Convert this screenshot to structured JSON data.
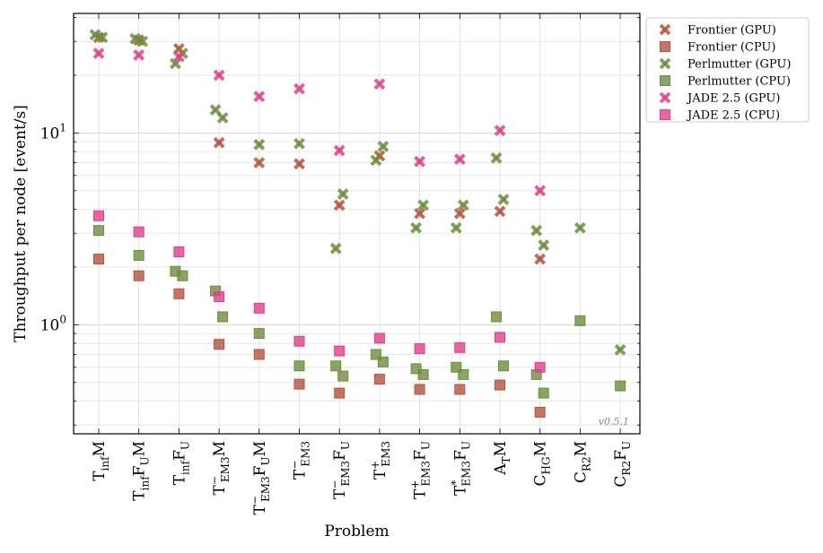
{
  "chart_data": {
    "type": "scatter",
    "xlabel": "Problem",
    "ylabel": "Throughput per node [event/s]",
    "yscale": "log",
    "ylim": [
      0.27,
      42
    ],
    "grid": true,
    "legend_position": "top-right-outside",
    "version_label": "v0.5.1",
    "y_tick_labels": [
      {
        "value": 1,
        "label": "10",
        "exp": "0"
      },
      {
        "value": 10,
        "label": "10",
        "exp": "1"
      }
    ],
    "categories": [
      {
        "base": "T",
        "sub": "inf",
        "mid": "M",
        "sub2": ""
      },
      {
        "base": "T",
        "sub": "inf",
        "mid": "F",
        "sub2": "U",
        "tail": "M"
      },
      {
        "base": "T",
        "sub": "inf",
        "mid": "F",
        "sub2": "U"
      },
      {
        "base": "T",
        "sup": "−",
        "sub": "EM3",
        "mid": "M",
        "sub2": ""
      },
      {
        "base": "T",
        "sup": "−",
        "sub": "EM3",
        "mid": "F",
        "sub2": "U",
        "tail": "M"
      },
      {
        "base": "T",
        "sup": "−",
        "sub": "EM3",
        "mid": "",
        "sub2": ""
      },
      {
        "base": "T",
        "sup": "−",
        "sub": "EM3",
        "mid": "F",
        "sub2": "U"
      },
      {
        "base": "T",
        "sup": "+",
        "sub": "EM3",
        "mid": "",
        "sub2": ""
      },
      {
        "base": "T",
        "sup": "+",
        "sub": "EM3",
        "mid": "F",
        "sub2": "U"
      },
      {
        "base": "T",
        "sup": "*",
        "sub": "EM3",
        "mid": "F",
        "sub2": "U"
      },
      {
        "base": "A",
        "sub": "T",
        "mid": "M",
        "sub2": ""
      },
      {
        "base": "C",
        "sub": "HG",
        "mid": "M",
        "sub2": ""
      },
      {
        "base": "C",
        "sub": "R2",
        "mid": "M",
        "sub2": ""
      },
      {
        "base": "C",
        "sub": "R2",
        "mid": "F",
        "sub2": "U"
      }
    ],
    "series": [
      {
        "name": "Frontier (GPU)",
        "marker": "x",
        "color": "#b5533c",
        "points": [
          [
            0,
            31.5
          ],
          [
            1,
            30.5
          ],
          [
            2,
            27.5
          ],
          [
            3,
            8.9
          ],
          [
            4,
            7.0
          ],
          [
            5,
            6.9
          ],
          [
            6,
            4.2
          ],
          [
            7,
            7.6
          ],
          [
            8,
            3.8
          ],
          [
            9,
            3.8
          ],
          [
            10,
            3.9
          ],
          [
            11,
            2.2
          ]
        ]
      },
      {
        "name": "Frontier (CPU)",
        "marker": "s",
        "color": "#b5533c",
        "points": [
          [
            0,
            2.2
          ],
          [
            1,
            1.8
          ],
          [
            2,
            1.45
          ],
          [
            3,
            0.79
          ],
          [
            4,
            0.7
          ],
          [
            5,
            0.49
          ],
          [
            6,
            0.44
          ],
          [
            7,
            0.52
          ],
          [
            8,
            0.46
          ],
          [
            9,
            0.46
          ],
          [
            10,
            0.485
          ],
          [
            11,
            0.35
          ]
        ]
      },
      {
        "name": "Perlmutter (GPU)",
        "marker": "x",
        "color": "#6b8f3c",
        "points": [
          [
            0,
            32.5
          ],
          [
            0,
            31.5
          ],
          [
            1,
            31
          ],
          [
            1,
            30
          ],
          [
            2,
            23
          ],
          [
            2,
            26
          ],
          [
            3,
            13.2
          ],
          [
            3,
            12.0
          ],
          [
            4,
            8.7
          ],
          [
            5,
            8.8
          ],
          [
            6,
            2.5
          ],
          [
            6,
            4.8
          ],
          [
            7,
            7.2
          ],
          [
            7,
            8.5
          ],
          [
            8,
            3.2
          ],
          [
            8,
            4.2
          ],
          [
            9,
            3.2
          ],
          [
            9,
            4.2
          ],
          [
            10,
            7.4
          ],
          [
            10,
            4.5
          ],
          [
            11,
            3.1
          ],
          [
            11,
            2.6
          ],
          [
            12,
            3.2
          ],
          [
            13,
            0.74
          ]
        ]
      },
      {
        "name": "Perlmutter (CPU)",
        "marker": "s",
        "color": "#6b8f3c",
        "points": [
          [
            0,
            3.1
          ],
          [
            1,
            2.3
          ],
          [
            2,
            1.9
          ],
          [
            2,
            1.8
          ],
          [
            3,
            1.5
          ],
          [
            3,
            1.1
          ],
          [
            4,
            0.9
          ],
          [
            5,
            0.61
          ],
          [
            6,
            0.61
          ],
          [
            6,
            0.54
          ],
          [
            7,
            0.7
          ],
          [
            7,
            0.64
          ],
          [
            8,
            0.59
          ],
          [
            8,
            0.55
          ],
          [
            9,
            0.6
          ],
          [
            9,
            0.55
          ],
          [
            10,
            1.1
          ],
          [
            10,
            0.61
          ],
          [
            11,
            0.55
          ],
          [
            11,
            0.44
          ],
          [
            12,
            1.05
          ],
          [
            13,
            0.48
          ]
        ]
      },
      {
        "name": "JADE 2.5 (GPU)",
        "marker": "x",
        "color": "#e0408a",
        "points": [
          [
            0,
            26
          ],
          [
            1,
            25.5
          ],
          [
            2,
            25
          ],
          [
            3,
            20
          ],
          [
            4,
            15.5
          ],
          [
            5,
            17
          ],
          [
            6,
            8.1
          ],
          [
            7,
            18
          ],
          [
            8,
            7.1
          ],
          [
            9,
            7.3
          ],
          [
            10,
            10.3
          ],
          [
            11,
            5.0
          ]
        ]
      },
      {
        "name": "JADE 2.5 (CPU)",
        "marker": "s",
        "color": "#e0408a",
        "points": [
          [
            0,
            3.7
          ],
          [
            1,
            3.05
          ],
          [
            2,
            2.4
          ],
          [
            3,
            1.4
          ],
          [
            4,
            1.22
          ],
          [
            5,
            0.82
          ],
          [
            6,
            0.73
          ],
          [
            7,
            0.85
          ],
          [
            8,
            0.75
          ],
          [
            9,
            0.76
          ],
          [
            10,
            0.86
          ],
          [
            11,
            0.6
          ]
        ]
      }
    ]
  }
}
